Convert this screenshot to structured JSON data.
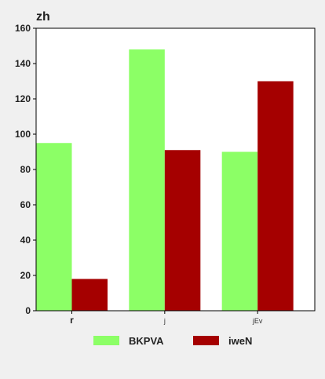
{
  "chart_data": {
    "type": "bar",
    "ylabel": "zh",
    "xlabel": "",
    "title": "",
    "categories": [
      "r",
      "j",
      "jEv"
    ],
    "ylim": [
      0,
      160
    ],
    "yticks": [
      0,
      20,
      40,
      60,
      80,
      100,
      120,
      140,
      160
    ],
    "grid": false,
    "legend_position": "bottom",
    "series": [
      {
        "name": "BKPVA",
        "color": "#8cff66",
        "values": [
          95,
          148,
          90
        ]
      },
      {
        "name": "iweN",
        "color": "#a50000",
        "values": [
          18,
          91,
          130
        ]
      }
    ]
  }
}
